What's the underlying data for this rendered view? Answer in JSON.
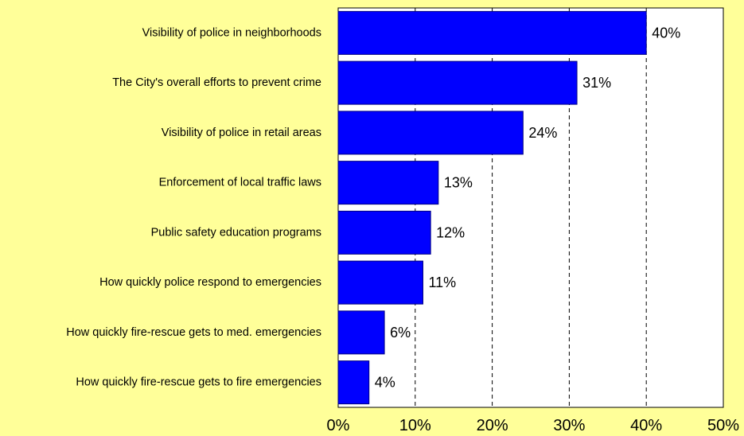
{
  "chart_data": {
    "type": "bar",
    "orientation": "horizontal",
    "categories": [
      "Visibility of police in neighborhoods",
      "The City's overall efforts to prevent crime",
      "Visibility of police in retail areas",
      "Enforcement of local traffic laws",
      "Public safety education programs",
      "How quickly police respond to emergencies",
      "How quickly fire-rescue gets to med. emergencies",
      "How quickly fire-rescue gets to fire emergencies"
    ],
    "values": [
      40,
      31,
      24,
      13,
      12,
      11,
      6,
      4
    ],
    "value_labels": [
      "40%",
      "31%",
      "24%",
      "13%",
      "12%",
      "11%",
      "6%",
      "4%"
    ],
    "xlim": [
      0,
      50
    ],
    "xticks": [
      0,
      10,
      20,
      30,
      40,
      50
    ],
    "xtick_labels": [
      "0%",
      "10%",
      "20%",
      "30%",
      "40%",
      "50%"
    ],
    "grid": "vertical dashed",
    "title": "",
    "xlabel": "",
    "ylabel": ""
  },
  "colors": {
    "background": "#FFFF99",
    "plot_background": "#FFFFFF",
    "bar_fill": "#0000FF",
    "bar_stroke": "#000080",
    "grid": "#000000",
    "text": "#000000"
  }
}
